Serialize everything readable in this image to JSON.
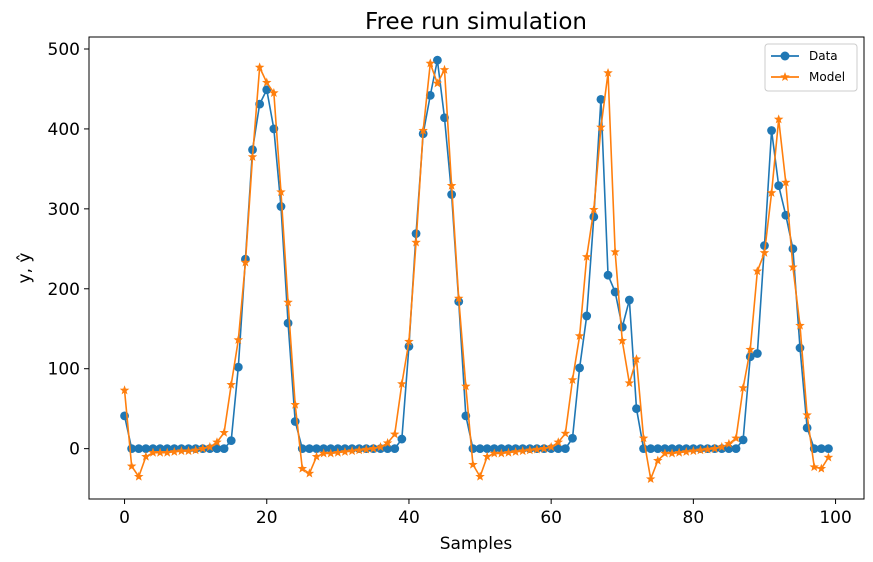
{
  "chart_data": {
    "type": "line",
    "title": "Free run simulation",
    "xlabel": "Samples",
    "ylabel": "y, ŷ",
    "xlim": [
      -5,
      104
    ],
    "ylim": [
      -63,
      515
    ],
    "xticks": [
      0,
      20,
      40,
      60,
      80,
      100
    ],
    "yticks": [
      0,
      100,
      200,
      300,
      400,
      500
    ],
    "grid": false,
    "legend_position": "upper right",
    "colors": {
      "data": "#1f77b4",
      "model": "#ff7f0e"
    },
    "series": [
      {
        "name": "Data",
        "marker": "circle",
        "color": "#1f77b4",
        "x": [
          0,
          1,
          2,
          3,
          4,
          5,
          6,
          7,
          8,
          9,
          10,
          11,
          12,
          13,
          14,
          15,
          16,
          17,
          18,
          19,
          20,
          21,
          22,
          23,
          24,
          25,
          26,
          27,
          28,
          29,
          30,
          31,
          32,
          33,
          34,
          35,
          36,
          37,
          38,
          39,
          40,
          41,
          42,
          43,
          44,
          45,
          46,
          47,
          48,
          49,
          50,
          51,
          52,
          53,
          54,
          55,
          56,
          57,
          58,
          59,
          60,
          61,
          62,
          63,
          64,
          65,
          66,
          67,
          68,
          69,
          70,
          71,
          72,
          73,
          74,
          75,
          76,
          77,
          78,
          79,
          80,
          81,
          82,
          83,
          84,
          85,
          86,
          87,
          88,
          89,
          90,
          91,
          92,
          93,
          94,
          95,
          96,
          97,
          98,
          99
        ],
        "y": [
          41,
          0,
          0,
          0,
          0,
          0,
          0,
          0,
          0,
          0,
          0,
          0,
          0,
          0,
          0,
          10,
          102,
          237,
          374,
          431,
          449,
          400,
          303,
          157,
          34,
          0,
          0,
          0,
          0,
          0,
          0,
          0,
          0,
          0,
          0,
          0,
          0,
          0,
          0,
          12,
          128,
          269,
          394,
          442,
          486,
          414,
          318,
          184,
          41,
          0,
          0,
          0,
          0,
          0,
          0,
          0,
          0,
          0,
          0,
          0,
          0,
          0,
          0,
          13,
          101,
          166,
          290,
          437,
          217,
          196,
          152,
          186,
          50,
          0,
          0,
          0,
          0,
          0,
          0,
          0,
          0,
          0,
          0,
          0,
          0,
          0,
          0,
          11,
          115,
          119,
          254,
          398,
          329,
          292,
          250,
          126,
          26,
          0,
          0,
          0
        ]
      },
      {
        "name": "Model",
        "marker": "star",
        "color": "#ff7f0e",
        "x": [
          0,
          1,
          2,
          3,
          4,
          5,
          6,
          7,
          8,
          9,
          10,
          11,
          12,
          13,
          14,
          15,
          16,
          17,
          18,
          19,
          20,
          21,
          22,
          23,
          24,
          25,
          26,
          27,
          28,
          29,
          30,
          31,
          32,
          33,
          34,
          35,
          36,
          37,
          38,
          39,
          40,
          41,
          42,
          43,
          44,
          45,
          46,
          47,
          48,
          49,
          50,
          51,
          52,
          53,
          54,
          55,
          56,
          57,
          58,
          59,
          60,
          61,
          62,
          63,
          64,
          65,
          66,
          67,
          68,
          69,
          70,
          71,
          72,
          73,
          74,
          75,
          76,
          77,
          78,
          79,
          80,
          81,
          82,
          83,
          84,
          85,
          86,
          87,
          88,
          89,
          90,
          91,
          92,
          93,
          94,
          95,
          96,
          97,
          98,
          99
        ],
        "y": [
          73,
          -22,
          -35,
          -10,
          -5,
          -5,
          -5,
          -4,
          -3,
          -3,
          -2,
          0,
          2,
          8,
          20,
          80,
          136,
          233,
          365,
          477,
          458,
          445,
          321,
          183,
          55,
          -25,
          -31,
          -10,
          -6,
          -6,
          -5,
          -4,
          -3,
          -2,
          -1,
          0,
          2,
          7,
          18,
          81,
          134,
          258,
          398,
          482,
          457,
          474,
          329,
          188,
          78,
          -20,
          -35,
          -10,
          -6,
          -6,
          -5,
          -4,
          -3,
          -2,
          -1,
          0,
          2,
          8,
          19,
          86,
          141,
          240,
          299,
          402,
          470,
          246,
          135,
          82,
          112,
          13,
          -38,
          -15,
          -6,
          -6,
          -5,
          -4,
          -3,
          -2,
          -1,
          0,
          2,
          6,
          13,
          76,
          124,
          222,
          245,
          320,
          412,
          333,
          227,
          154,
          42,
          -23,
          -25,
          -11
        ]
      }
    ]
  }
}
